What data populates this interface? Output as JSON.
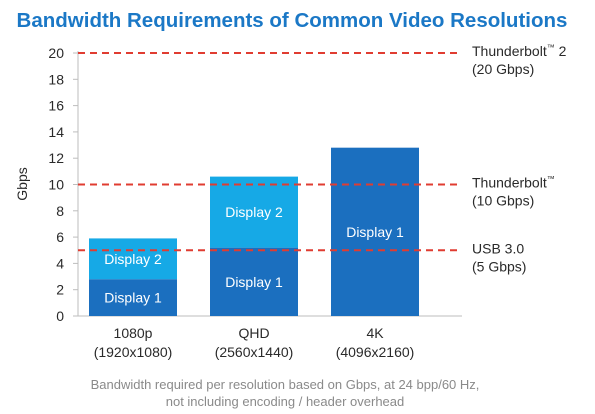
{
  "chart_data": {
    "type": "bar",
    "stacked": true,
    "title": "Bandwidth Requirements of Common Video Resolutions",
    "ylabel": "Gbps",
    "xlabel": "",
    "ylim": [
      0,
      20
    ],
    "yticks": [
      0,
      2,
      4,
      6,
      8,
      10,
      12,
      14,
      16,
      18,
      20
    ],
    "grid": false,
    "categories": [
      {
        "name": "1080p",
        "resolution": "(1920x1080)"
      },
      {
        "name": "QHD",
        "resolution": "(2560x1440)"
      },
      {
        "name": "4K",
        "resolution": "(4096x2160)"
      }
    ],
    "series": [
      {
        "name": "Display 1",
        "color": "#1b6fbf",
        "values": [
          2.8,
          5.2,
          12.8
        ],
        "labels": [
          "Display 1",
          "Display 1",
          "Display 1"
        ]
      },
      {
        "name": "Display 2",
        "color": "#16a9e6",
        "values": [
          3.1,
          5.4,
          null
        ],
        "labels": [
          "Display 2",
          "Display 2",
          ""
        ]
      }
    ],
    "reference_lines": [
      {
        "value": 20,
        "label": "Thunderbolt",
        "sup": "™",
        "suffix": " 2",
        "sub_label": "(20 Gbps)",
        "color": "#e03c31"
      },
      {
        "value": 10,
        "label": "Thunderbolt",
        "sup": "™",
        "suffix": "",
        "sub_label": "(10 Gbps)",
        "color": "#e03c31"
      },
      {
        "value": 5,
        "label": "USB 3.0",
        "sup": "",
        "suffix": "",
        "sub_label": "(5 Gbps)",
        "color": "#e03c31"
      }
    ],
    "caption": [
      "Bandwidth required per resolution based on Gbps, at 24 bpp/60 Hz,",
      "not including encoding / header overhead"
    ]
  }
}
